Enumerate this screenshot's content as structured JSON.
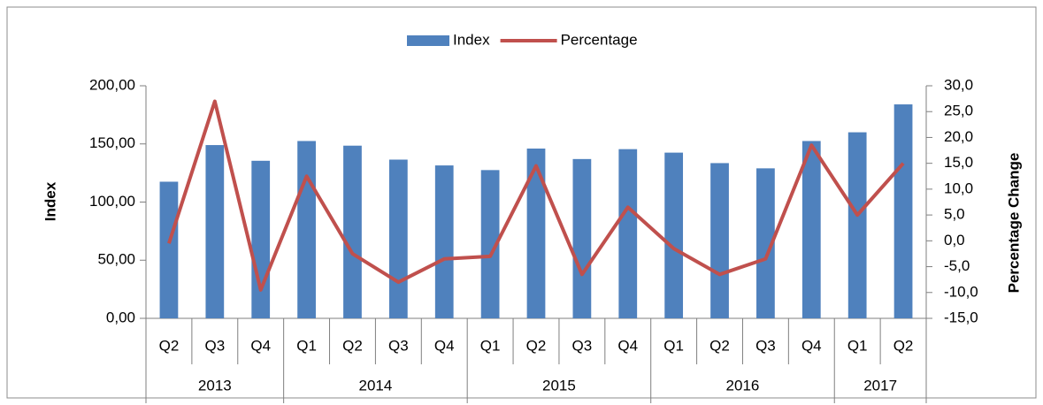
{
  "chart_data": {
    "type": "bar_line",
    "groups": [
      {
        "label": "2013",
        "categories": [
          "Q2",
          "Q3",
          "Q4"
        ]
      },
      {
        "label": "2014",
        "categories": [
          "Q1",
          "Q2",
          "Q3",
          "Q4"
        ]
      },
      {
        "label": "2015",
        "categories": [
          "Q1",
          "Q2",
          "Q3",
          "Q4"
        ]
      },
      {
        "label": "2016",
        "categories": [
          "Q1",
          "Q2",
          "Q3",
          "Q4"
        ]
      },
      {
        "label": "2017",
        "categories": [
          "Q1",
          "Q2"
        ]
      }
    ],
    "series": [
      {
        "name": "Index",
        "type": "bar",
        "color": "#4f81bd",
        "axis": "y",
        "values": [
          117.5,
          149,
          135.5,
          152.5,
          148.5,
          136.5,
          131.5,
          127.5,
          146,
          137,
          145.5,
          142.5,
          133.5,
          129,
          152.5,
          160,
          184
        ]
      },
      {
        "name": "Percentage",
        "type": "line",
        "color": "#c0504d",
        "axis": "y2",
        "values": [
          -0.5,
          27,
          -9.5,
          12.5,
          -2.5,
          -8,
          -3.5,
          -3,
          14.5,
          -6.5,
          6.5,
          -1.5,
          -6.5,
          -3.5,
          18.5,
          5,
          15
        ]
      }
    ],
    "ylabel": "Index",
    "y2label": "Percentage Change",
    "ylim": [
      0,
      200
    ],
    "yticks": [
      {
        "value": 0,
        "label": "0,00"
      },
      {
        "value": 50,
        "label": "50,00"
      },
      {
        "value": 100,
        "label": "100,00"
      },
      {
        "value": 150,
        "label": "150,00"
      },
      {
        "value": 200,
        "label": "200,00"
      }
    ],
    "y2lim": [
      -15,
      30
    ],
    "y2ticks": [
      {
        "value": -15,
        "label": "-15,0"
      },
      {
        "value": -10,
        "label": "-10,0"
      },
      {
        "value": -5,
        "label": "-5,0"
      },
      {
        "value": 0,
        "label": "0,0"
      },
      {
        "value": 5,
        "label": "5,0"
      },
      {
        "value": 10,
        "label": "10,0"
      },
      {
        "value": 15,
        "label": "15,0"
      },
      {
        "value": 20,
        "label": "20,0"
      },
      {
        "value": 25,
        "label": "25,0"
      },
      {
        "value": 30,
        "label": "30,0"
      }
    ],
    "legend": "top"
  }
}
